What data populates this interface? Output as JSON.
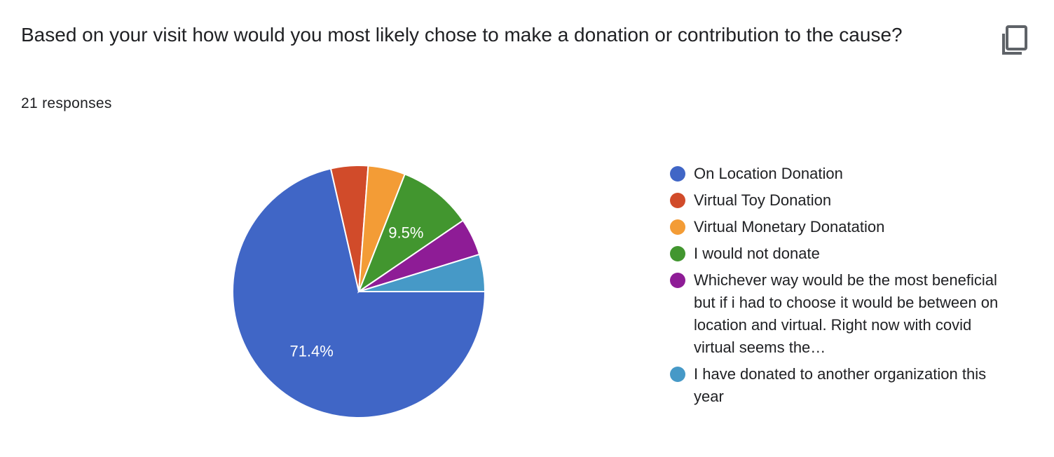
{
  "question": "Based on your visit how would you most likely chose to make a donation or contribution to the cause?",
  "response_count": "21 responses",
  "copy_icon": "copy-icon",
  "chart_data": {
    "type": "pie",
    "total": 21,
    "slices": [
      {
        "label": "On Location Donation",
        "count": 15,
        "percent": 71.4,
        "percent_label": "71.4%",
        "color": "#4066c6"
      },
      {
        "label": "Virtual Toy Donation",
        "count": 1,
        "percent": 4.8,
        "percent_label": "",
        "color": "#d14b2a"
      },
      {
        "label": "Virtual Monetary Donatation",
        "count": 1,
        "percent": 4.8,
        "percent_label": "",
        "color": "#f39c36"
      },
      {
        "label": "I would not donate",
        "count": 2,
        "percent": 9.5,
        "percent_label": "9.5%",
        "color": "#42962f"
      },
      {
        "label": "Whichever way would be the most beneficial but if i had to choose it would be between on location and virtual. Right now with covid virtual seems the…",
        "count": 1,
        "percent": 4.8,
        "percent_label": "",
        "color": "#8e1c96"
      },
      {
        "label": "I have donated to another organization this year",
        "count": 1,
        "percent": 4.8,
        "percent_label": "",
        "color": "#4699c7"
      }
    ]
  }
}
